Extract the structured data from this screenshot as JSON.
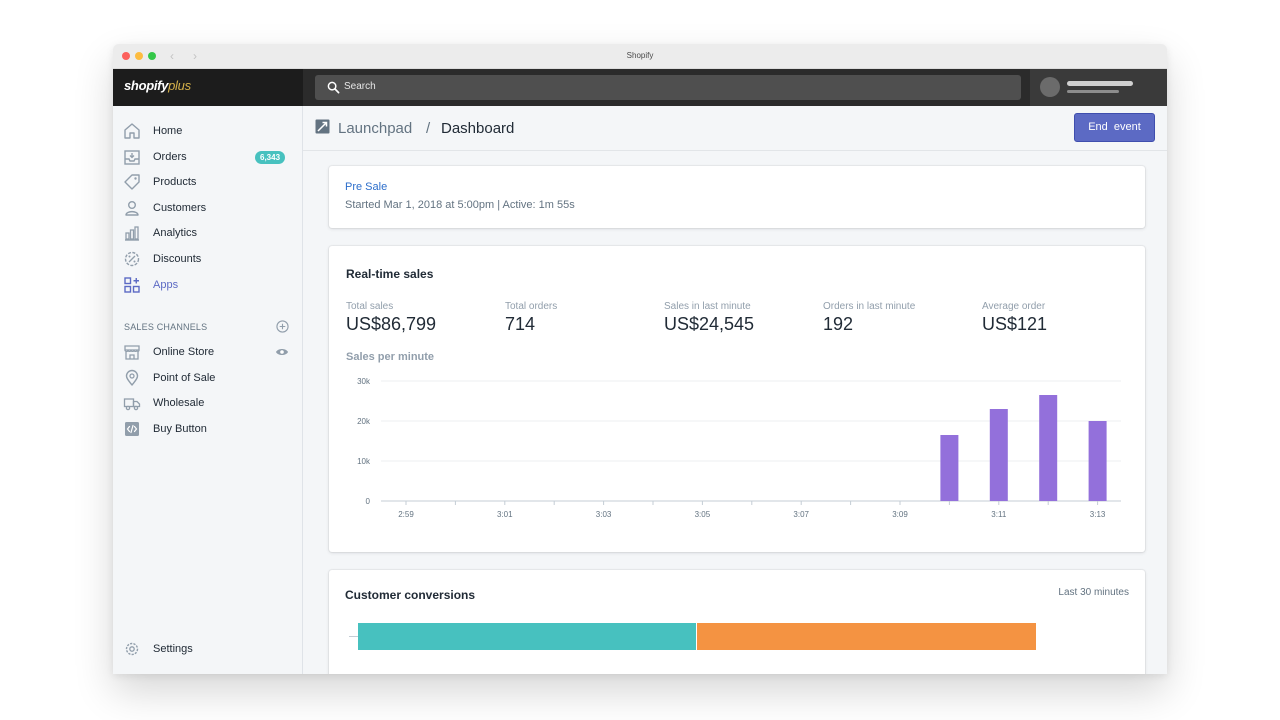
{
  "window": {
    "title": "Shopify"
  },
  "brand": {
    "logo_main": "shopify",
    "logo_plus": "plus"
  },
  "search": {
    "label": "Search"
  },
  "sidebar": {
    "items": [
      {
        "label": "Home",
        "icon": "home-icon"
      },
      {
        "label": "Orders",
        "icon": "orders-icon",
        "badge": "6,343"
      },
      {
        "label": "Products",
        "icon": "tag-icon"
      },
      {
        "label": "Customers",
        "icon": "person-icon"
      },
      {
        "label": "Analytics",
        "icon": "bar-chart-icon"
      },
      {
        "label": "Discounts",
        "icon": "discount-icon"
      },
      {
        "label": "Apps",
        "icon": "apps-icon",
        "active": true
      }
    ],
    "section_title": "SALES CHANNELS",
    "channels": [
      {
        "label": "Online Store",
        "icon": "store-icon"
      },
      {
        "label": "Point of Sale",
        "icon": "location-pin-icon"
      },
      {
        "label": "Wholesale",
        "icon": "truck-icon"
      },
      {
        "label": "Buy Button",
        "icon": "code-icon"
      }
    ],
    "settings_label": "Settings"
  },
  "header": {
    "breadcrumb_parent": "Launchpad",
    "breadcrumb_sep": "/",
    "breadcrumb_current": "Dashboard",
    "end_event_label": "End  event"
  },
  "event": {
    "name": "Pre Sale",
    "status": "Started Mar 1, 2018 at 5:00pm | Active: 1m 55s"
  },
  "realtime": {
    "title": "Real-time sales",
    "metrics": [
      {
        "label": "Total sales",
        "value": "US$86,799"
      },
      {
        "label": "Total orders",
        "value": "714"
      },
      {
        "label": "Sales in last minute",
        "value": "US$24,545"
      },
      {
        "label": "Orders in last minute",
        "value": "192"
      },
      {
        "label": "Average order",
        "value": "US$121"
      }
    ],
    "chart_title": "Sales per minute"
  },
  "chart_data": {
    "type": "bar",
    "title": "Sales per minute",
    "categories": [
      "2:59",
      "3:00",
      "3:01",
      "3:02",
      "3:03",
      "3:04",
      "3:05",
      "3:06",
      "3:07",
      "3:08",
      "3:09",
      "3:10",
      "3:11",
      "3:12",
      "3:13"
    ],
    "x_tick_labels": [
      "2:59",
      "3:01",
      "3:03",
      "3:05",
      "3:07",
      "3:09",
      "3:11",
      "3:13"
    ],
    "values": [
      0,
      0,
      0,
      0,
      0,
      0,
      0,
      0,
      0,
      0,
      0,
      16500,
      23000,
      26500,
      20000
    ],
    "ylim": [
      0,
      30000
    ],
    "y_ticks": [
      0,
      10000,
      20000,
      30000
    ],
    "y_tick_labels": [
      "0",
      "10k",
      "20k",
      "30k"
    ],
    "grid": true,
    "bar_color": "#9370db"
  },
  "conversions": {
    "title": "Customer conversions",
    "range_label": "Last 30 minutes",
    "segments": [
      {
        "fraction": 0.5,
        "color": "#47c1bf"
      },
      {
        "fraction": 0.5,
        "color": "#f49342"
      }
    ]
  },
  "colors": {
    "accent": "#5c6ac4",
    "link": "#2c6ecb",
    "badge": "#47c1bf"
  }
}
